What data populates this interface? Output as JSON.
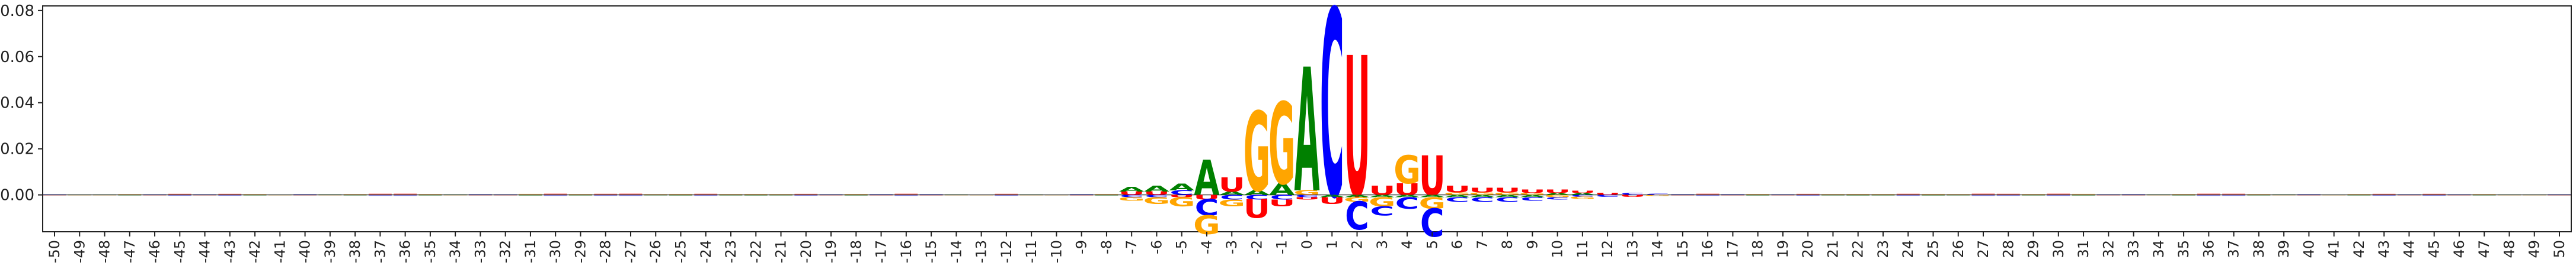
{
  "chart_data": {
    "type": "sequence-logo",
    "title": "",
    "xlabel": "",
    "ylabel": "",
    "ylim": [
      -0.016,
      0.082
    ],
    "y_ticks": [
      0.0,
      0.02,
      0.04,
      0.06,
      0.08
    ],
    "y_tick_labels": [
      "0.00",
      "0.02",
      "0.04",
      "0.06",
      "0.08"
    ],
    "x_range": [
      -50,
      50
    ],
    "x_tick_labels": [
      "-50",
      "-49",
      "-48",
      "-47",
      "-46",
      "-45",
      "-44",
      "-43",
      "-42",
      "-41",
      "-40",
      "-39",
      "-38",
      "-37",
      "-36",
      "-35",
      "-34",
      "-33",
      "-32",
      "-31",
      "-30",
      "-29",
      "-28",
      "-27",
      "-26",
      "-25",
      "-24",
      "-23",
      "-22",
      "-21",
      "-20",
      "-19",
      "-18",
      "-17",
      "-16",
      "-15",
      "-14",
      "-13",
      "-12",
      "-11",
      "-10",
      "-9",
      "-8",
      "-7",
      "-6",
      "-5",
      "-4",
      "-3",
      "-2",
      "-1",
      "0",
      "1",
      "2",
      "3",
      "4",
      "5",
      "6",
      "7",
      "8",
      "9",
      "10",
      "11",
      "12",
      "13",
      "14",
      "15",
      "16",
      "17",
      "18",
      "19",
      "20",
      "21",
      "22",
      "23",
      "24",
      "25",
      "26",
      "27",
      "28",
      "29",
      "30",
      "31",
      "32",
      "33",
      "34",
      "35",
      "36",
      "37",
      "38",
      "39",
      "40",
      "41",
      "42",
      "43",
      "44",
      "45",
      "46",
      "47",
      "48",
      "49",
      "50"
    ],
    "grid": false,
    "baseline": true,
    "base_colors": {
      "A": "#008000",
      "C": "#0000ff",
      "G": "#ffa500",
      "U": "#ff0000"
    },
    "positions": [
      {
        "x": -7,
        "letters": [
          {
            "base": "A",
            "value": 0.002
          },
          {
            "base": "U",
            "value": 0.0015
          },
          {
            "base": "G",
            "value": -0.0015
          },
          {
            "base": "C",
            "value": -0.001
          }
        ]
      },
      {
        "x": -6,
        "letters": [
          {
            "base": "A",
            "value": 0.0025
          },
          {
            "base": "U",
            "value": 0.0015
          },
          {
            "base": "G",
            "value": -0.003
          },
          {
            "base": "C",
            "value": -0.001
          }
        ]
      },
      {
        "x": -5,
        "letters": [
          {
            "base": "A",
            "value": 0.003
          },
          {
            "base": "C",
            "value": 0.002
          },
          {
            "base": "G",
            "value": -0.004
          },
          {
            "base": "U",
            "value": -0.001
          }
        ]
      },
      {
        "x": -4,
        "letters": [
          {
            "base": "A",
            "value": 0.015
          },
          {
            "base": "U",
            "value": -0.002
          },
          {
            "base": "C",
            "value": -0.007
          },
          {
            "base": "G",
            "value": -0.008
          }
        ]
      },
      {
        "x": -3,
        "letters": [
          {
            "base": "U",
            "value": 0.006
          },
          {
            "base": "A",
            "value": 0.0015
          },
          {
            "base": "C",
            "value": -0.002
          },
          {
            "base": "G",
            "value": -0.003
          }
        ]
      },
      {
        "x": -2,
        "letters": [
          {
            "base": "G",
            "value": 0.034
          },
          {
            "base": "A",
            "value": 0.002
          },
          {
            "base": "C",
            "value": -0.002
          },
          {
            "base": "U",
            "value": -0.008
          }
        ]
      },
      {
        "x": -1,
        "letters": [
          {
            "base": "G",
            "value": 0.035
          },
          {
            "base": "A",
            "value": 0.005
          },
          {
            "base": "C",
            "value": -0.002
          },
          {
            "base": "U",
            "value": -0.003
          }
        ]
      },
      {
        "x": 0,
        "letters": [
          {
            "base": "A",
            "value": 0.053
          },
          {
            "base": "G",
            "value": 0.002
          },
          {
            "base": "C",
            "value": -0.001
          },
          {
            "base": "U",
            "value": -0.001
          }
        ]
      },
      {
        "x": 1,
        "letters": [
          {
            "base": "C",
            "value": 0.08
          },
          {
            "base": "U",
            "value": -0.003
          },
          {
            "base": "A",
            "value": -0.001
          }
        ]
      },
      {
        "x": 2,
        "letters": [
          {
            "base": "U",
            "value": 0.06
          },
          {
            "base": "A",
            "value": -0.001
          },
          {
            "base": "G",
            "value": -0.002
          },
          {
            "base": "C",
            "value": -0.012
          }
        ]
      },
      {
        "x": 3,
        "letters": [
          {
            "base": "U",
            "value": 0.004
          },
          {
            "base": "A",
            "value": -0.001
          },
          {
            "base": "G",
            "value": -0.004
          },
          {
            "base": "C",
            "value": -0.004
          }
        ]
      },
      {
        "x": 4,
        "letters": [
          {
            "base": "G",
            "value": 0.012
          },
          {
            "base": "U",
            "value": 0.005
          },
          {
            "base": "A",
            "value": -0.001
          },
          {
            "base": "C",
            "value": -0.005
          }
        ]
      },
      {
        "x": 5,
        "letters": [
          {
            "base": "U",
            "value": 0.017
          },
          {
            "base": "A",
            "value": -0.001
          },
          {
            "base": "G",
            "value": -0.005
          },
          {
            "base": "C",
            "value": -0.012
          }
        ]
      },
      {
        "x": 6,
        "letters": [
          {
            "base": "U",
            "value": 0.003
          },
          {
            "base": "G",
            "value": 0.001
          },
          {
            "base": "C",
            "value": -0.002
          },
          {
            "base": "A",
            "value": -0.001
          }
        ]
      },
      {
        "x": 7,
        "letters": [
          {
            "base": "U",
            "value": 0.002
          },
          {
            "base": "G",
            "value": 0.001
          },
          {
            "base": "C",
            "value": -0.002
          },
          {
            "base": "A",
            "value": -0.001
          }
        ]
      },
      {
        "x": 8,
        "letters": [
          {
            "base": "U",
            "value": 0.002
          },
          {
            "base": "G",
            "value": 0.001
          },
          {
            "base": "C",
            "value": -0.002
          },
          {
            "base": "A",
            "value": -0.001
          }
        ]
      },
      {
        "x": 9,
        "letters": [
          {
            "base": "U",
            "value": 0.0015
          },
          {
            "base": "G",
            "value": 0.0008
          },
          {
            "base": "C",
            "value": -0.0015
          },
          {
            "base": "A",
            "value": -0.001
          }
        ]
      },
      {
        "x": 10,
        "letters": [
          {
            "base": "U",
            "value": 0.0015
          },
          {
            "base": "A",
            "value": 0.0008
          },
          {
            "base": "G",
            "value": -0.001
          },
          {
            "base": "C",
            "value": -0.001
          }
        ]
      },
      {
        "x": 11,
        "letters": [
          {
            "base": "U",
            "value": 0.001
          },
          {
            "base": "A",
            "value": 0.0008
          },
          {
            "base": "G",
            "value": -0.001
          },
          {
            "base": "C",
            "value": -0.0008
          }
        ]
      },
      {
        "x": 12,
        "letters": [
          {
            "base": "U",
            "value": 0.0008
          },
          {
            "base": "C",
            "value": -0.0008
          }
        ]
      },
      {
        "x": 13,
        "letters": [
          {
            "base": "C",
            "value": 0.0008
          },
          {
            "base": "U",
            "value": -0.0008
          }
        ]
      },
      {
        "x": 14,
        "letters": [
          {
            "base": "C",
            "value": 0.0005
          },
          {
            "base": "G",
            "value": -0.0005
          }
        ]
      }
    ],
    "noise_amplitude": 0.0004
  }
}
